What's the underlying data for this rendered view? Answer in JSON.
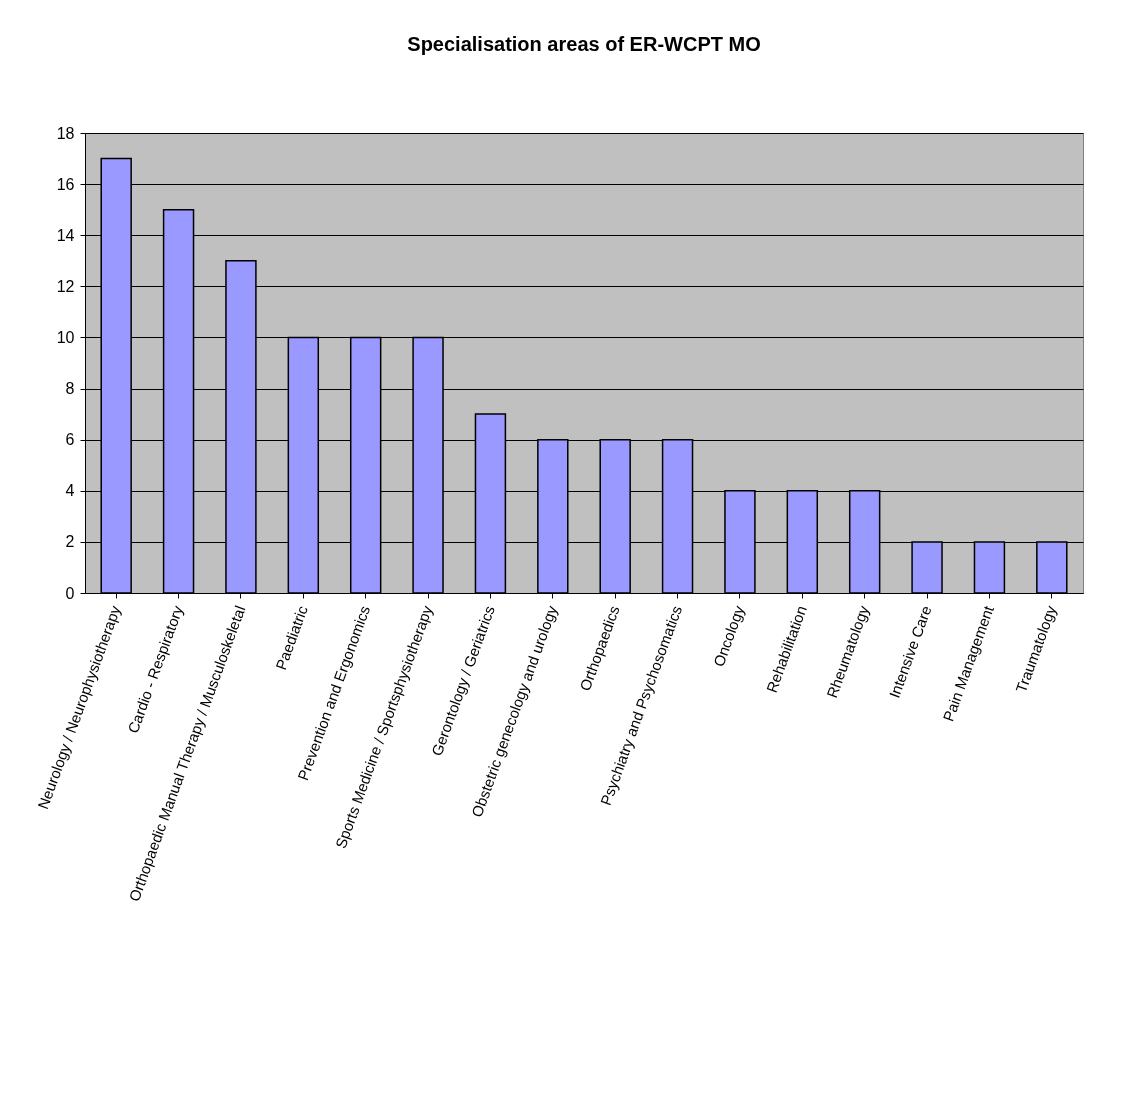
{
  "chart_data": {
    "type": "bar",
    "title": "Specialisation areas of ER-WCPT MO",
    "categories": [
      "Neurology / Neurophysiotherapy",
      "Cardio - Respiratory",
      "Orthopaedic Manual Therapy / Musculoskeletal",
      "Paediatric",
      "Prevention and Ergonomics",
      "Sports Medicine / Sportsphysiotherapy",
      "Gerontology / Geriatrics",
      "Obstetric genecology and urology",
      "Orthopaedics",
      "Psychiatry and Psychosomatics",
      "Oncology",
      "Rehabilitation",
      "Rheumatology",
      "Intensive Care",
      "Pain Management",
      "Traumatology"
    ],
    "values": [
      17,
      15,
      13,
      10,
      10,
      10,
      7,
      6,
      6,
      6,
      4,
      4,
      4,
      2,
      2,
      2
    ],
    "color": "#9999ff",
    "ylim": [
      0,
      18
    ],
    "yticks": [
      0,
      2,
      4,
      6,
      8,
      10,
      12,
      14,
      16,
      18
    ],
    "grid": "y"
  }
}
